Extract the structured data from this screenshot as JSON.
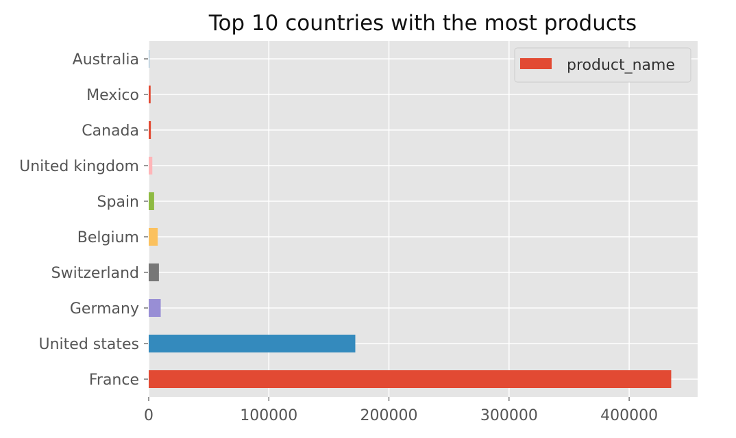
{
  "chart_data": {
    "type": "bar",
    "orientation": "horizontal",
    "title": "Top 10 countries with the most products",
    "xlabel": "",
    "ylabel": "",
    "categories": [
      "France",
      "United states",
      "Germany",
      "Switzerland",
      "Belgium",
      "Spain",
      "United kingdom",
      "Canada",
      "Mexico",
      "Australia"
    ],
    "series": [
      {
        "name": "product_name",
        "values": [
          435000,
          172000,
          10000,
          8500,
          7500,
          4500,
          3000,
          1800,
          1600,
          300
        ]
      }
    ],
    "bar_colors": [
      "#E24A33",
      "#348ABD",
      "#988ED5",
      "#777777",
      "#FBC15E",
      "#8EBA42",
      "#FFB5B8",
      "#E24A33",
      "#E24A33",
      "#348ABD"
    ],
    "xlim": [
      0,
      457000
    ],
    "xticks": [
      0,
      100000,
      200000,
      300000,
      400000
    ],
    "grid": true,
    "legend_position": "upper-right",
    "style": {
      "plot_background": "#E5E5E5",
      "grid_color": "#FFFFFF",
      "legend_color": "#E24A33"
    }
  }
}
